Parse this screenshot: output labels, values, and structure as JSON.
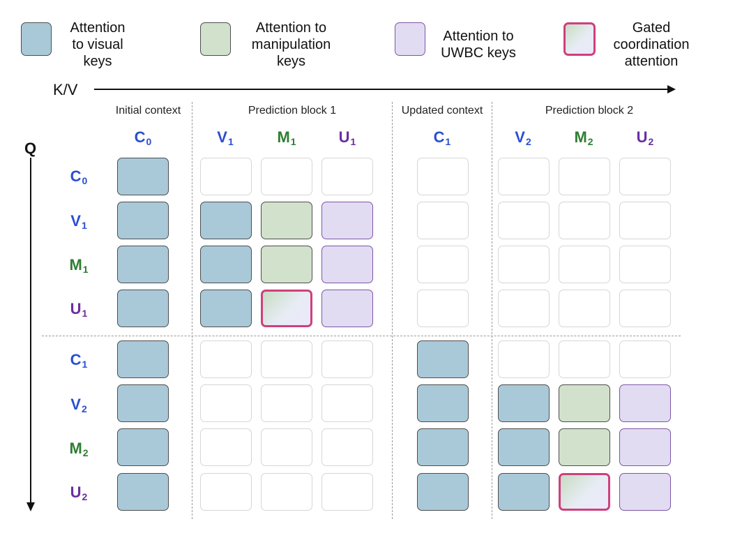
{
  "legend": [
    {
      "id": "visual",
      "label_lines": [
        "Attention",
        "to visual",
        "keys"
      ]
    },
    {
      "id": "manip",
      "label_lines": [
        "Attention to",
        "manipulation",
        "keys"
      ]
    },
    {
      "id": "uwbc",
      "label_lines": [
        "Attention to",
        "UWBC keys"
      ]
    },
    {
      "id": "gated",
      "label_lines": [
        "Gated",
        "coordination",
        "attention"
      ]
    }
  ],
  "axes": {
    "kv": "K/V",
    "q": "Q"
  },
  "column_groups": [
    "Initial context",
    "Prediction block 1",
    "Updated context",
    "Prediction block 2"
  ],
  "columns": [
    {
      "letter": "C",
      "sub": "0",
      "color": "#2a4fd0"
    },
    {
      "letter": "V",
      "sub": "1",
      "color": "#2a4fd0"
    },
    {
      "letter": "M",
      "sub": "1",
      "color": "#2e7d32"
    },
    {
      "letter": "U",
      "sub": "1",
      "color": "#6a2fa0"
    },
    {
      "letter": "C",
      "sub": "1",
      "color": "#2a4fd0"
    },
    {
      "letter": "V",
      "sub": "2",
      "color": "#2a4fd0"
    },
    {
      "letter": "M",
      "sub": "2",
      "color": "#2e7d32"
    },
    {
      "letter": "U",
      "sub": "2",
      "color": "#6a2fa0"
    }
  ],
  "rows": [
    {
      "letter": "C",
      "sub": "0",
      "color": "#2a4fd0"
    },
    {
      "letter": "V",
      "sub": "1",
      "color": "#2a4fd0"
    },
    {
      "letter": "M",
      "sub": "1",
      "color": "#2e7d32"
    },
    {
      "letter": "U",
      "sub": "1",
      "color": "#6a2fa0"
    },
    {
      "letter": "C",
      "sub": "1",
      "color": "#2a4fd0"
    },
    {
      "letter": "V",
      "sub": "2",
      "color": "#2a4fd0"
    },
    {
      "letter": "M",
      "sub": "2",
      "color": "#2e7d32"
    },
    {
      "letter": "U",
      "sub": "2",
      "color": "#6a2fa0"
    }
  ],
  "matrix": [
    [
      "visual",
      "empty",
      "empty",
      "empty",
      "empty",
      "empty",
      "empty",
      "empty"
    ],
    [
      "visual",
      "visual",
      "manip",
      "uwbc",
      "empty",
      "empty",
      "empty",
      "empty"
    ],
    [
      "visual",
      "visual",
      "manip",
      "uwbc",
      "empty",
      "empty",
      "empty",
      "empty"
    ],
    [
      "visual",
      "visual",
      "gated",
      "uwbc",
      "empty",
      "empty",
      "empty",
      "empty"
    ],
    [
      "visual",
      "empty",
      "empty",
      "empty",
      "visual",
      "empty",
      "empty",
      "empty"
    ],
    [
      "visual",
      "empty",
      "empty",
      "empty",
      "visual",
      "visual",
      "manip",
      "uwbc"
    ],
    [
      "visual",
      "empty",
      "empty",
      "empty",
      "visual",
      "visual",
      "manip",
      "uwbc"
    ],
    [
      "visual",
      "empty",
      "empty",
      "empty",
      "visual",
      "visual",
      "gated",
      "uwbc"
    ]
  ],
  "colors": {
    "visual": "#a9c9d8",
    "manip": "#d2e1cb",
    "uwbc": "#e2dcf2",
    "gated_border": "#cf3f7d"
  }
}
